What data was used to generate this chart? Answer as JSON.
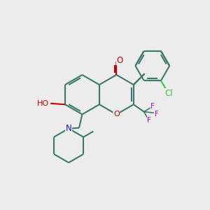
{
  "bg_color": "#ececec",
  "bond_color": "#3a7a6a",
  "bond_width": 1.5,
  "atom_colors": {
    "O": "#cc0000",
    "N": "#1a1acc",
    "Cl": "#33cc33",
    "F": "#cc00cc",
    "C": "#3a7a6a"
  },
  "font_size": 8.5,
  "fig_size": [
    3.0,
    3.0
  ],
  "dpi": 100
}
